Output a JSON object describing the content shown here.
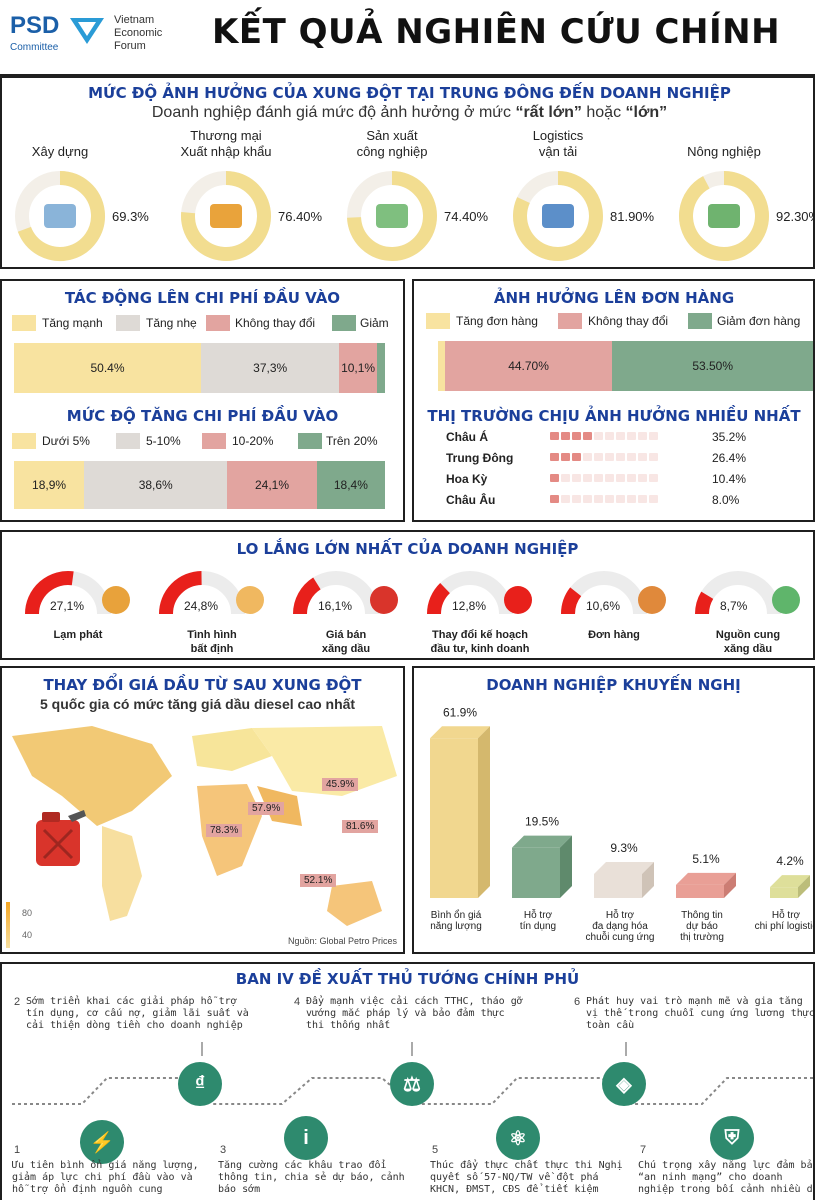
{
  "header": {
    "logo_psd": "PSD",
    "logo_committee": "Committee",
    "logo_vef": "Vietnam Economic Forum",
    "title": "KẾT QUẢ NGHIÊN CỨU CHÍNH"
  },
  "impact": {
    "title": "MỨC ĐỘ ẢNH HƯỞNG CỦA XUNG ĐỘT TẠI TRUNG ĐÔNG ĐẾN DOANH NGHIỆP",
    "subtitle_pre": "Doanh nghiệp đánh giá mức độ ảnh hưởng ở mức ",
    "subtitle_q1": "“rất lớn”",
    "subtitle_mid": " hoặc ",
    "subtitle_q2": "“lớn”"
  },
  "chart_data": [
    {
      "id": "sector_impact",
      "type": "pie",
      "title": "MỨC ĐỘ ẢNH HƯỞNG CỦA XUNG ĐỘT TẠI TRUNG ĐÔNG ĐẾN DOANH NGHIỆP",
      "categories": [
        "Xây dựng",
        "Thương mại Xuất nhập khẩu",
        "Sản xuất công nghiệp",
        "Logistics vận tải",
        "Nông nghiệp"
      ],
      "labels": [
        "69.3%",
        "76.40%",
        "74.40%",
        "81.90%",
        "92.30%"
      ],
      "values": [
        69.3,
        76.4,
        74.4,
        81.9,
        92.3
      ]
    },
    {
      "id": "input_cost",
      "type": "bar",
      "title": "TÁC ĐỘNG LÊN CHI PHÍ ĐẦU VÀO",
      "categories": [
        "Tăng mạnh",
        "Tăng nhẹ",
        "Không thay đổi",
        "Giảm"
      ],
      "labels": [
        "50.4%",
        "37,3%",
        "10,1%",
        ""
      ],
      "values": [
        50.4,
        37.3,
        10.1,
        2.2
      ],
      "colors": [
        "#f8e3a0",
        "#dedad6",
        "#e2a4a0",
        "#7fa98c"
      ]
    },
    {
      "id": "orders",
      "type": "bar",
      "title": "ẢNH HƯỞNG LÊN ĐƠN HÀNG",
      "categories": [
        "Tăng đơn hàng",
        "Không thay đổi",
        "Giảm đơn hàng"
      ],
      "labels": [
        "",
        "44.70%",
        "53.50%"
      ],
      "values": [
        1.8,
        44.7,
        53.5
      ],
      "colors": [
        "#f8e3a0",
        "#e2a4a0",
        "#7fa98c"
      ]
    },
    {
      "id": "cost_increase_level",
      "type": "bar",
      "title": "MỨC ĐỘ TĂNG CHI PHÍ ĐẦU VÀO",
      "categories": [
        "Dưới 5%",
        "5-10%",
        "10-20%",
        "Trên 20%"
      ],
      "labels": [
        "18,9%",
        "38,6%",
        "24,1%",
        "18,4%"
      ],
      "values": [
        18.9,
        38.6,
        24.1,
        18.4
      ],
      "colors": [
        "#f8e3a0",
        "#dedad6",
        "#e2a4a0",
        "#7fa98c"
      ]
    },
    {
      "id": "markets",
      "type": "bar",
      "title": "THỊ TRƯỜNG CHỊU ẢNH HƯỞNG NHIỀU NHẤT",
      "categories": [
        "Châu Á",
        "Trung Đông",
        "Hoa Kỳ",
        "Châu Âu"
      ],
      "labels": [
        "35.2%",
        "26.4%",
        "10.4%",
        "8.0%"
      ],
      "values": [
        35.2,
        26.4,
        10.4,
        8.0
      ]
    },
    {
      "id": "worries",
      "type": "pie",
      "title": "LO LẮNG LỚN NHẤT CỦA DOANH NGHIỆP",
      "categories": [
        "Lạm phát",
        "Tình hình bất định",
        "Giá bán xăng dầu",
        "Thay đổi kế hoạch đầu tư, kinh doanh",
        "Đơn hàng",
        "Nguồn cung xăng dầu"
      ],
      "labels": [
        "27,1%",
        "24,8%",
        "16,1%",
        "12,8%",
        "10,6%",
        "8,7%"
      ],
      "values": [
        27.1,
        24.8,
        16.1,
        12.8,
        10.6,
        8.7
      ]
    },
    {
      "id": "oil_price",
      "type": "bar",
      "title": "THAY ĐỔI GIÁ DẦU TỪ SAU XUNG ĐỘT",
      "subtitle": "5 quốc gia có mức tăng giá dầu diesel cao nhất",
      "labels": [
        "45.9%",
        "57.9%",
        "78.3%",
        "81.6%",
        "52.1%"
      ],
      "values": [
        45.9,
        57.9,
        78.3,
        81.6,
        52.1
      ],
      "legend_ticks": [
        "80",
        "40"
      ],
      "source": "Nguồn: Global Petro Prices"
    },
    {
      "id": "recommend",
      "type": "bar",
      "title": "DOANH NGHIỆP KHUYẾN NGHỊ",
      "categories": [
        "Bình ổn giá năng lượng",
        "Hỗ trợ tín dụng",
        "Hỗ trợ đa dạng hóa chuỗi cung ứng",
        "Thông tin dự báo thị trường",
        "Hỗ trợ chi phí logistic"
      ],
      "labels": [
        "61.9%",
        "19.5%",
        "9.3%",
        "5.1%",
        "4.2%"
      ],
      "values": [
        61.9,
        19.5,
        9.3,
        5.1,
        4.2
      ],
      "colors": [
        "#f1d78f",
        "#7fa98c",
        "#e9e0d8",
        "#e99f96",
        "#dedf9a"
      ]
    }
  ],
  "sectors": [
    {
      "name": "Xây dựng",
      "pct": "69.3%"
    },
    {
      "name": "Thương mại\nXuất nhập khẩu",
      "pct": "76.40%"
    },
    {
      "name": "Sản xuất\ncông nghiệp",
      "pct": "74.40%"
    },
    {
      "name": "Logistics\nvận tải",
      "pct": "81.90%"
    },
    {
      "name": "Nông nghiệp",
      "pct": "92.30%"
    }
  ],
  "cost": {
    "title": "TÁC ĐỘNG LÊN CHI PHÍ ĐẦU VÀO",
    "legend": [
      "Tăng mạnh",
      "Tăng nhẹ",
      "Không thay đổi",
      "Giảm"
    ],
    "labels": [
      "50.4%",
      "37,3%",
      "10,1%",
      ""
    ]
  },
  "orders": {
    "title": "ẢNH HƯỞNG LÊN ĐƠN HÀNG",
    "legend": [
      "Tăng đơn hàng",
      "Không thay đổi",
      "Giảm đơn hàng"
    ],
    "labels": [
      "",
      "44.70%",
      "53.50%"
    ]
  },
  "cost_level": {
    "title": "MỨC ĐỘ TĂNG CHI PHÍ ĐẦU VÀO",
    "legend": [
      "Dưới 5%",
      "5-10%",
      "10-20%",
      "Trên 20%"
    ],
    "labels": [
      "18,9%",
      "38,6%",
      "24,1%",
      "18,4%"
    ]
  },
  "markets": {
    "title": "THỊ TRƯỜNG CHỊU ẢNH HƯỞNG NHIỀU NHẤT",
    "rows": [
      {
        "name": "Châu Á",
        "pct": "35.2%"
      },
      {
        "name": "Trung Đông",
        "pct": "26.4%"
      },
      {
        "name": "Hoa Kỳ",
        "pct": "10.4%"
      },
      {
        "name": "Châu Âu",
        "pct": "8.0%"
      }
    ]
  },
  "worries": {
    "title": "LO LẮNG LỚN NHẤT CỦA DOANH NGHIỆP",
    "items": [
      {
        "pct": "27,1%",
        "label": "Lạm phát"
      },
      {
        "pct": "24,8%",
        "label": "Tình hình\nbất định"
      },
      {
        "pct": "16,1%",
        "label": "Giá bán\nxăng dầu"
      },
      {
        "pct": "12,8%",
        "label": "Thay đổi kế hoạch\nđầu tư, kinh doanh"
      },
      {
        "pct": "10,6%",
        "label": "Đơn hàng"
      },
      {
        "pct": "8,7%",
        "label": "Nguồn cung\nxăng dầu"
      }
    ]
  },
  "oil": {
    "title": "THAY ĐỔI GIÁ DẦU TỪ SAU XUNG ĐỘT",
    "subtitle": "5 quốc gia có mức tăng giá dầu diesel cao nhất",
    "callouts": [
      "45.9%",
      "57.9%",
      "78.3%",
      "81.6%",
      "52.1%"
    ],
    "ticks": [
      "80",
      "40"
    ],
    "source": "Nguồn: Global Petro Prices"
  },
  "recommend": {
    "title": "DOANH NGHIỆP KHUYẾN NGHỊ",
    "items": [
      {
        "pct": "61.9%",
        "label": "Bình ổn giá\nnăng lượng"
      },
      {
        "pct": "19.5%",
        "label": "Hỗ trợ\ntín dụng"
      },
      {
        "pct": "9.3%",
        "label": "Hỗ trợ\nđa dạng hóa\nchuỗi cung ứng"
      },
      {
        "pct": "5.1%",
        "label": "Thông tin\ndự báo\nthị trường"
      },
      {
        "pct": "4.2%",
        "label": "Hỗ trợ\nchi phí logistic"
      }
    ]
  },
  "proposals": {
    "title": "BAN IV ĐỀ XUẤT THỦ TƯỚNG CHÍNH PHỦ",
    "top": [
      {
        "num": "2",
        "text": "Sớm triển khai các giải pháp hỗ trợ\ntín dụng, cơ cấu nợ, giảm lãi suất và\ncải thiện dòng tiền cho doanh nghiệp"
      },
      {
        "num": "4",
        "text": "Đẩy mạnh việc cải cách TTHC, tháo gỡ\nvướng mắc pháp lý và bảo đảm thực\nthi thống nhất"
      },
      {
        "num": "6",
        "text": "Phát huy vai trò mạnh mẽ và gia tăng\nvị thế trong chuỗi cung ứng lương thực\ntoàn cầu"
      }
    ],
    "bottom": [
      {
        "num": "1",
        "text": "Ưu tiên bình ổn giá năng lượng,\ngiảm áp lực chi phí đầu vào và\nhỗ trợ ổn định nguồn cung"
      },
      {
        "num": "3",
        "text": "Tăng cường các khâu trao đổi\nthông tin, chia sẻ dự báo, cảnh\nbáo sớm"
      },
      {
        "num": "5",
        "text": "Thúc đẩy thực chất thực thi Nghị\nquyết số 57-NQ/TW về đột phá\nKHCN, ĐMST, CĐS để tiết kiệm"
      },
      {
        "num": "7",
        "text": "Chú trọng xây năng lực đảm bảo\n“an ninh mạng” cho doanh\nnghiệp trong bối cảnh nhiều diễn"
      }
    ]
  }
}
